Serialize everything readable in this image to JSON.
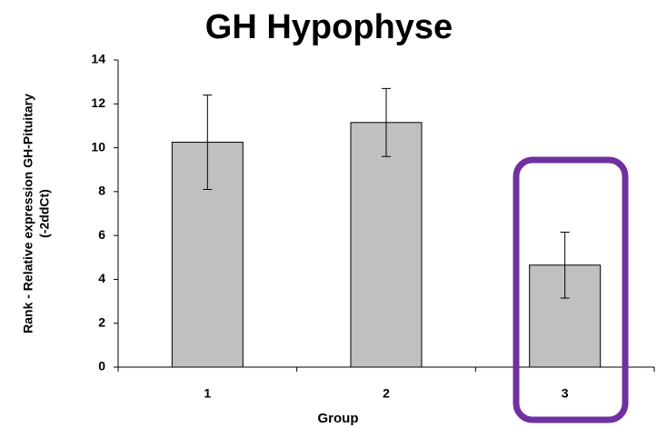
{
  "chart_data": {
    "type": "bar",
    "title": "GH Hypophyse",
    "x_label": "Group",
    "y_label": [
      "Rank - Relative expression GH-Pituitary",
      "(-2ddCt)"
    ],
    "categories": [
      "1",
      "2",
      "3"
    ],
    "values": [
      10.25,
      11.15,
      4.65
    ],
    "errors": [
      2.15,
      1.55,
      1.5
    ],
    "color": "#c0c0c0",
    "ylim": [
      0,
      14
    ],
    "yticks": [
      0,
      2,
      4,
      6,
      8,
      10,
      12,
      14
    ],
    "grid": false
  }
}
